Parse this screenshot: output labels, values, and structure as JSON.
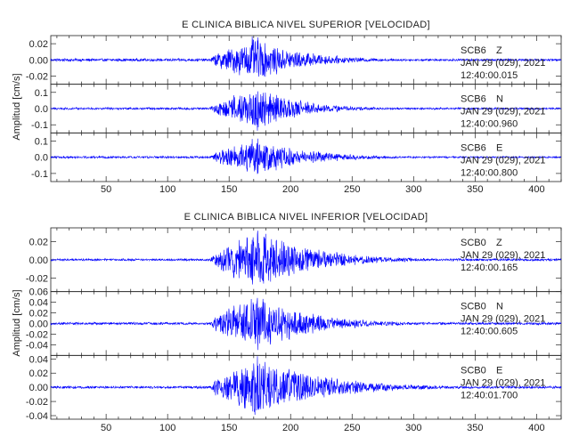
{
  "chart_data": [
    {
      "type": "line",
      "title": "E CLINICA BIBLICA NIVEL SUPERIOR [VELOCIDAD]",
      "ylabel": "Amplitud [cm/s]",
      "xlim": [
        5,
        420
      ],
      "xticks": [
        "50",
        "100",
        "150",
        "200",
        "250",
        "300",
        "350",
        "400"
      ],
      "color": "#0000ff",
      "panels": [
        {
          "station": "SCB6",
          "component": "Z",
          "date": "JAN 29 (029), 2021",
          "time": "12:40:00.015",
          "ylim": [
            -0.03,
            0.03
          ],
          "yticks": [
            "0.02",
            "0.00",
            "-0.02"
          ],
          "onset": 135,
          "peak_time": 168,
          "peak_amp": 0.025,
          "pre_noise": 0.0015,
          "post_noise": 0.0012,
          "decay": 38
        },
        {
          "station": "SCB6",
          "component": "N",
          "date": "JAN 29 (029), 2021",
          "time": "12:40:00.960",
          "ylim": [
            -0.15,
            0.15
          ],
          "yticks": [
            "0.1",
            "0.0",
            "-0.1"
          ],
          "onset": 135,
          "peak_time": 170,
          "peak_amp": 0.13,
          "pre_noise": 0.006,
          "post_noise": 0.005,
          "decay": 34
        },
        {
          "station": "SCB6",
          "component": "E",
          "date": "JAN 29 (029), 2021",
          "time": "12:40:00.800",
          "ylim": [
            -0.15,
            0.15
          ],
          "yticks": [
            "0.1",
            "0.0",
            "-0.1"
          ],
          "onset": 135,
          "peak_time": 168,
          "peak_amp": 0.11,
          "pre_noise": 0.006,
          "post_noise": 0.005,
          "decay": 40
        }
      ]
    },
    {
      "type": "line",
      "title": "E CLINICA BIBLICA NIVEL INFERIOR [VELOCIDAD]",
      "ylabel": "Amplitud [cm/s]",
      "xlim": [
        5,
        420
      ],
      "xticks": [
        "50",
        "100",
        "150",
        "200",
        "250",
        "300",
        "350",
        "400"
      ],
      "color": "#0000ff",
      "panels": [
        {
          "station": "SCB0",
          "component": "Z",
          "date": "JAN 29 (029), 2021",
          "time": "12:40:00.165",
          "ylim": [
            -0.035,
            0.035
          ],
          "yticks": [
            "0.02",
            "0.00",
            "-0.02"
          ],
          "onset": 135,
          "peak_time": 170,
          "peak_amp": 0.03,
          "pre_noise": 0.001,
          "post_noise": 0.0012,
          "decay": 45
        },
        {
          "station": "SCB0",
          "component": "N",
          "date": "JAN 29 (029), 2021",
          "time": "12:40:00.605",
          "ylim": [
            -0.06,
            0.06
          ],
          "yticks": [
            "0.06",
            "0.04",
            "0.02",
            "0.00",
            "-0.02",
            "-0.04"
          ],
          "onset": 135,
          "peak_time": 168,
          "peak_amp": 0.05,
          "pre_noise": 0.002,
          "post_noise": 0.002,
          "decay": 42
        },
        {
          "station": "SCB0",
          "component": "E",
          "date": "JAN 29 (029), 2021",
          "time": "12:40:01.700",
          "ylim": [
            -0.045,
            0.045
          ],
          "yticks": [
            "0.04",
            "0.02",
            "0.00",
            "-0.02",
            "-0.04"
          ],
          "onset": 135,
          "peak_time": 170,
          "peak_amp": 0.04,
          "pre_noise": 0.0015,
          "post_noise": 0.0015,
          "decay": 50
        }
      ]
    }
  ]
}
